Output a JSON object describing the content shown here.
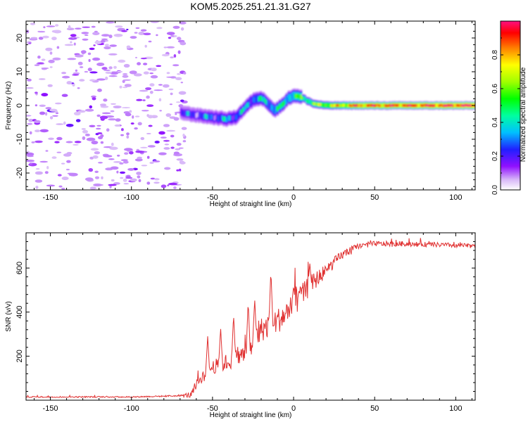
{
  "figure": {
    "title": "KOM5.2025.251.21.31.G27"
  },
  "chart_data": [
    {
      "type": "heatmap",
      "title": "KOM5.2025.251.21.31.G27",
      "xlabel": "Height of straight line (km)",
      "ylabel": "Frequency (Hz)",
      "xlim": [
        -165,
        112
      ],
      "ylim": [
        -25,
        25
      ],
      "xticks": [
        -150,
        -100,
        -50,
        0,
        50,
        100
      ],
      "xtick_labels": [
        "-150",
        "-100",
        "-50",
        "0",
        "50",
        "100"
      ],
      "yticks": [
        -20,
        -10,
        0,
        10,
        20
      ],
      "ytick_labels": [
        "-20",
        "-10",
        "0",
        "10",
        "20"
      ],
      "colorbar": {
        "label": "Normalized spectral amplitude",
        "range": [
          0,
          1
        ],
        "ticks": [
          0.0,
          0.2,
          0.4,
          0.6,
          0.8
        ],
        "tick_labels": [
          "0.0",
          "0.2",
          "0.4",
          "0.6",
          "0.8"
        ]
      },
      "noise_region": {
        "x_range": [
          -165,
          -67
        ],
        "y_range": [
          -25,
          25
        ],
        "amplitude": 0.15
      },
      "signal_ridge": [
        {
          "x": -70,
          "y": -2
        },
        {
          "x": -65,
          "y": -2.5
        },
        {
          "x": -58,
          "y": -3
        },
        {
          "x": -50,
          "y": -3.5
        },
        {
          "x": -42,
          "y": -4
        },
        {
          "x": -36,
          "y": -3.5
        },
        {
          "x": -32,
          "y": -1.5
        },
        {
          "x": -28,
          "y": 0.5
        },
        {
          "x": -24,
          "y": 2
        },
        {
          "x": -19,
          "y": 2
        },
        {
          "x": -15,
          "y": 0
        },
        {
          "x": -12,
          "y": -1.5
        },
        {
          "x": -8,
          "y": 0
        },
        {
          "x": -4,
          "y": 2
        },
        {
          "x": 0,
          "y": 3
        },
        {
          "x": 4,
          "y": 2.5
        },
        {
          "x": 8,
          "y": 1.5
        },
        {
          "x": 12,
          "y": 0.5
        },
        {
          "x": 20,
          "y": 0
        },
        {
          "x": 112,
          "y": 0
        }
      ],
      "signal_amplitude": [
        {
          "x": -70,
          "a": 0.2
        },
        {
          "x": -40,
          "a": 0.3
        },
        {
          "x": -20,
          "a": 0.35
        },
        {
          "x": 0,
          "a": 0.45
        },
        {
          "x": 20,
          "a": 0.65
        },
        {
          "x": 40,
          "a": 0.85
        },
        {
          "x": 112,
          "a": 0.95
        }
      ]
    },
    {
      "type": "line",
      "xlabel": "Height of straight line (km)",
      "ylabel": "SNR (v/v)",
      "xlim": [
        -165,
        112
      ],
      "ylim": [
        0,
        760
      ],
      "xticks": [
        -150,
        -100,
        -50,
        0,
        50,
        100
      ],
      "xtick_labels": [
        "-150",
        "-100",
        "-50",
        "0",
        "50",
        "100"
      ],
      "yticks": [
        200,
        400,
        600
      ],
      "ytick_labels": [
        "200",
        "400",
        "600"
      ],
      "series": [
        {
          "name": "SNR",
          "color": "#e03030",
          "trend": [
            {
              "x": -165,
              "y": 15
            },
            {
              "x": -100,
              "y": 15
            },
            {
              "x": -70,
              "y": 20
            },
            {
              "x": -63,
              "y": 25
            },
            {
              "x": -58,
              "y": 95
            },
            {
              "x": -50,
              "y": 150
            },
            {
              "x": -40,
              "y": 175
            },
            {
              "x": -30,
              "y": 210
            },
            {
              "x": -25,
              "y": 260
            },
            {
              "x": -20,
              "y": 320
            },
            {
              "x": -10,
              "y": 360
            },
            {
              "x": -5,
              "y": 390
            },
            {
              "x": 0,
              "y": 430
            },
            {
              "x": 10,
              "y": 520
            },
            {
              "x": 20,
              "y": 590
            },
            {
              "x": 30,
              "y": 660
            },
            {
              "x": 40,
              "y": 700
            },
            {
              "x": 50,
              "y": 710
            },
            {
              "x": 70,
              "y": 710
            },
            {
              "x": 112,
              "y": 700
            }
          ],
          "noise_amplitude": [
            {
              "x": -165,
              "a": 6
            },
            {
              "x": -70,
              "a": 6
            },
            {
              "x": -60,
              "a": 45
            },
            {
              "x": -40,
              "a": 80
            },
            {
              "x": -20,
              "a": 110
            },
            {
              "x": 0,
              "a": 120
            },
            {
              "x": 20,
              "a": 60
            },
            {
              "x": 40,
              "a": 25
            },
            {
              "x": 112,
              "a": 20
            }
          ],
          "peaks": [
            {
              "x": -53,
              "y": 290
            },
            {
              "x": -45,
              "y": 330
            },
            {
              "x": -37,
              "y": 390
            },
            {
              "x": -28,
              "y": 450
            },
            {
              "x": -24,
              "y": 460
            },
            {
              "x": -14,
              "y": 590
            },
            {
              "x": 0,
              "y": 520
            },
            {
              "x": 10,
              "y": 620
            }
          ]
        }
      ]
    }
  ]
}
